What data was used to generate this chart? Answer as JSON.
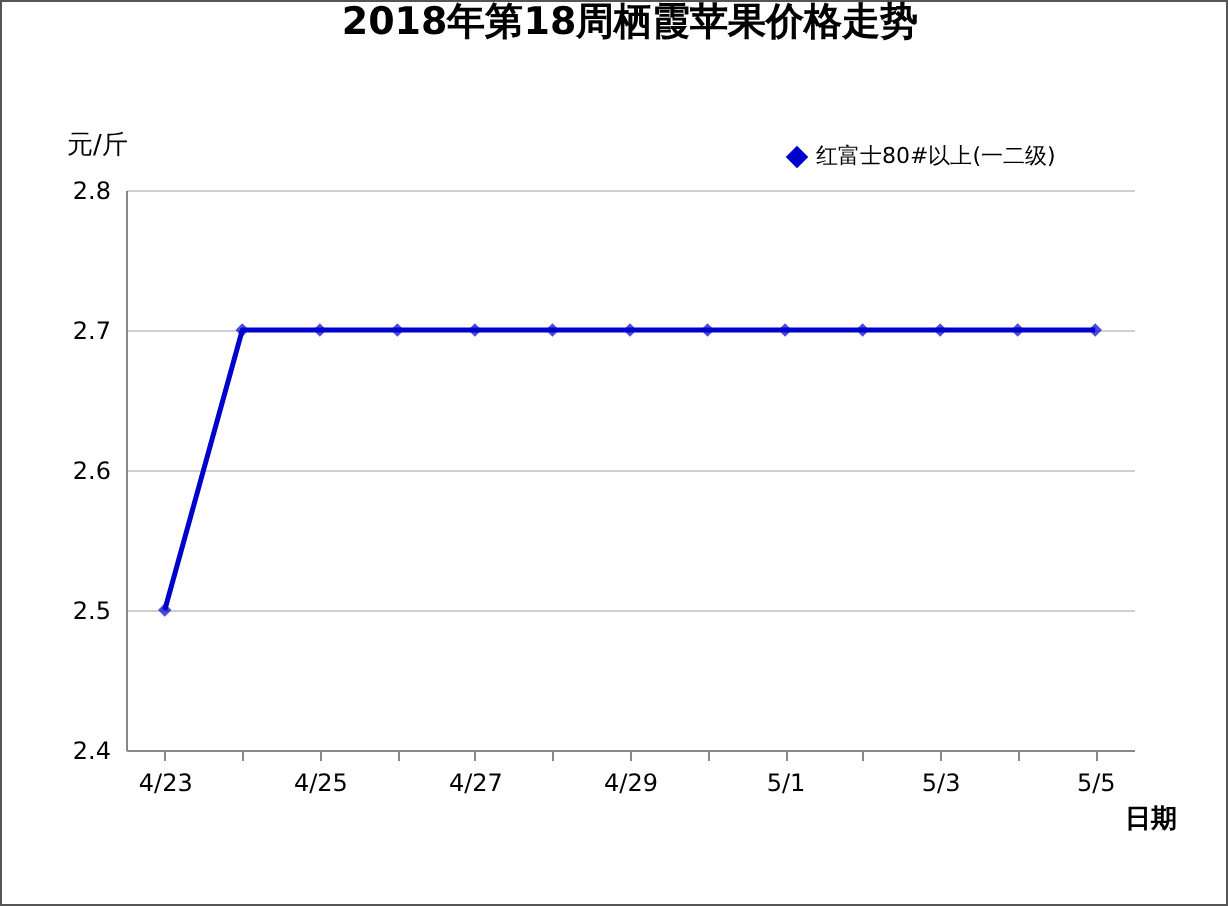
{
  "chart_data": {
    "type": "line",
    "title": "2018年第18周栖霞苹果价格走势",
    "xlabel": "日期",
    "ylabel": "元/斤",
    "categories": [
      "4/23",
      null,
      "4/25",
      null,
      "4/27",
      null,
      "4/29",
      null,
      "5/1",
      null,
      "5/3",
      null,
      "5/5"
    ],
    "series": [
      {
        "name": "红富士80#以上(一二级)",
        "color": "#0000cc",
        "values": [
          2.5,
          2.7,
          2.7,
          2.7,
          2.7,
          2.7,
          2.7,
          2.7,
          2.7,
          2.7,
          2.7,
          2.7,
          2.7
        ]
      }
    ],
    "ylim": [
      2.4,
      2.8
    ],
    "yticks": [
      2.4,
      2.5,
      2.6,
      2.7,
      2.8
    ],
    "grid": "y",
    "legend": "top right",
    "marker": "diamond",
    "line_style": "solid"
  }
}
